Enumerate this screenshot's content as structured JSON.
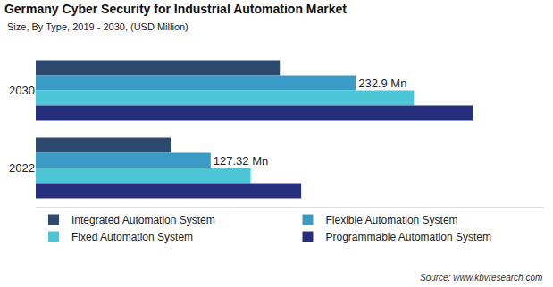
{
  "chart_data": {
    "type": "bar",
    "orientation": "horizontal",
    "title": "Germany Cyber Security for Industrial Automation Market",
    "subtitle": "Size, By Type, 2019 - 2030, (USD Million)",
    "source": "Source: www.kbvresearch.com",
    "categories": [
      "2030",
      "2022"
    ],
    "series": [
      {
        "name": "Integrated Automation System",
        "color": "#2d4a6e",
        "values": [
          177.7,
          98.2
        ]
      },
      {
        "name": "Flexible Automation System",
        "color": "#3a9cc6",
        "values": [
          232.9,
          127.32
        ],
        "value_labels": [
          "232.9 Mn",
          "127.32 Mn"
        ],
        "data_labels": true
      },
      {
        "name": "Fixed Automation System",
        "color": "#4cc6d6",
        "values": [
          275.3,
          156.4
        ]
      },
      {
        "name": "Programmable Automation System",
        "color": "#262f7c",
        "values": [
          318.0,
          193.2
        ]
      }
    ],
    "xlim": [
      0,
      370
    ],
    "xticks": [],
    "tick_labels": "y",
    "grid": false,
    "legend": "bottom"
  }
}
